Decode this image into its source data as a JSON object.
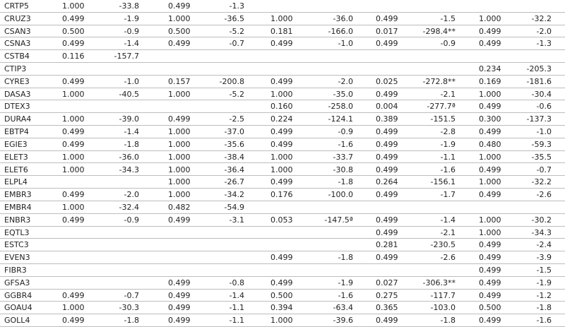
{
  "table": {
    "rows": [
      [
        "CRTP5",
        "1.000",
        "-33.8",
        "0.499",
        "-1.3",
        null,
        null,
        null,
        null,
        null,
        null
      ],
      [
        "CRUZ3",
        "0.499",
        "-1.9",
        "1.000",
        "-36.5",
        "1.000",
        "-36.0",
        "0.499",
        "-1.5",
        "1.000",
        "-32.2"
      ],
      [
        "CSAN3",
        "0.500",
        "-0.9",
        "0.500",
        "-5.2",
        "0.181",
        "-166.0",
        "0.017",
        "-298.4**",
        "0.499",
        "-2.0"
      ],
      [
        "CSNA3",
        "0.499",
        "-1.4",
        "0.499",
        "-0.7",
        "0.499",
        "-1.0",
        "0.499",
        "-0.9",
        "0.499",
        "-1.3"
      ],
      [
        "CSTB4",
        "0.116",
        "-157.7",
        null,
        null,
        null,
        null,
        null,
        null,
        null,
        null
      ],
      [
        "CTIP3",
        null,
        null,
        null,
        null,
        null,
        null,
        null,
        null,
        "0.234",
        "-205.3"
      ],
      [
        "CYRE3",
        "0.499",
        "-1.0",
        "0.157",
        "-200.8",
        "0.499",
        "-2.0",
        "0.025",
        "-272.8**",
        "0.169",
        "-181.6"
      ],
      [
        "DASA3",
        "1.000",
        "-40.5",
        "1.000",
        "-5.2",
        "1.000",
        "-35.0",
        "0.499",
        "-2.1",
        "1.000",
        "-30.4"
      ],
      [
        "DTEX3",
        null,
        null,
        null,
        null,
        "0.160",
        "-258.0",
        "0.004",
        "-277.7ª",
        "0.499",
        "-0.6"
      ],
      [
        "DURA4",
        "1.000",
        "-39.0",
        "0.499",
        "-2.5",
        "0.224",
        "-124.1",
        "0.389",
        "-151.5",
        "0.300",
        "-137.3"
      ],
      [
        "EBTP4",
        "0.499",
        "-1.4",
        "1.000",
        "-37.0",
        "0.499",
        "-0.9",
        "0.499",
        "-2.8",
        "0.499",
        "-1.0"
      ],
      [
        "EGIE3",
        "0.499",
        "-1.8",
        "1.000",
        "-35.6",
        "0.499",
        "-1.6",
        "0.499",
        "-1.9",
        "0.480",
        "-59.3"
      ],
      [
        "ELET3",
        "1.000",
        "-36.0",
        "1.000",
        "-38.4",
        "1.000",
        "-33.7",
        "0.499",
        "-1.1",
        "1.000",
        "-35.5"
      ],
      [
        "ELET6",
        "1.000",
        "-34.3",
        "1.000",
        "-36.4",
        "1.000",
        "-30.8",
        "0.499",
        "-1.6",
        "0.499",
        "-0.7"
      ],
      [
        "ELPL4",
        null,
        null,
        "1.000",
        "-26.7",
        "0.499",
        "-1.8",
        "0.264",
        "-156.1",
        "1.000",
        "-32.2"
      ],
      [
        "EMBR3",
        "0.499",
        "-2.0",
        "1.000",
        "-34.2",
        "0.176",
        "-100.0",
        "0.499",
        "-1.7",
        "0.499",
        "-2.6"
      ],
      [
        "EMBR4",
        "1.000",
        "-32.4",
        "0.482",
        "-54.9",
        null,
        null,
        null,
        null,
        null,
        null
      ],
      [
        "ENBR3",
        "0.499",
        "-0.9",
        "0.499",
        "-3.1",
        "0.053",
        "-147.5ª",
        "0.499",
        "-1.4",
        "1.000",
        "-30.2"
      ],
      [
        "EQTL3",
        null,
        null,
        null,
        null,
        null,
        null,
        "0.499",
        "-2.1",
        "1.000",
        "-34.3"
      ],
      [
        "ESTC3",
        null,
        null,
        null,
        null,
        null,
        null,
        "0.281",
        "-230.5",
        "0.499",
        "-2.4"
      ],
      [
        "EVEN3",
        null,
        null,
        null,
        null,
        "0.499",
        "-1.8",
        "0.499",
        "-2.6",
        "0.499",
        "-3.9"
      ],
      [
        "FIBR3",
        null,
        null,
        null,
        null,
        null,
        null,
        null,
        null,
        "0.499",
        "-1.5"
      ],
      [
        "GFSA3",
        null,
        null,
        "0.499",
        "-0.8",
        "0.499",
        "-1.9",
        "0.027",
        "-306.3**",
        "0.499",
        "-1.9"
      ],
      [
        "GGBR4",
        "0.499",
        "-0.7",
        "0.499",
        "-1.4",
        "0.500",
        "-1.6",
        "0.275",
        "-117.7",
        "0.499",
        "-1.2"
      ],
      [
        "GOAU4",
        "1.000",
        "-30.3",
        "0.499",
        "-1.1",
        "0.394",
        "-63.4",
        "0.365",
        "-103.0",
        "0.500",
        "-1.8"
      ],
      [
        "GOLL4",
        "0.499",
        "-1.8",
        "0.499",
        "-1.1",
        "1.000",
        "-39.6",
        "0.499",
        "-1.8",
        "0.499",
        "-1.6"
      ]
    ]
  }
}
